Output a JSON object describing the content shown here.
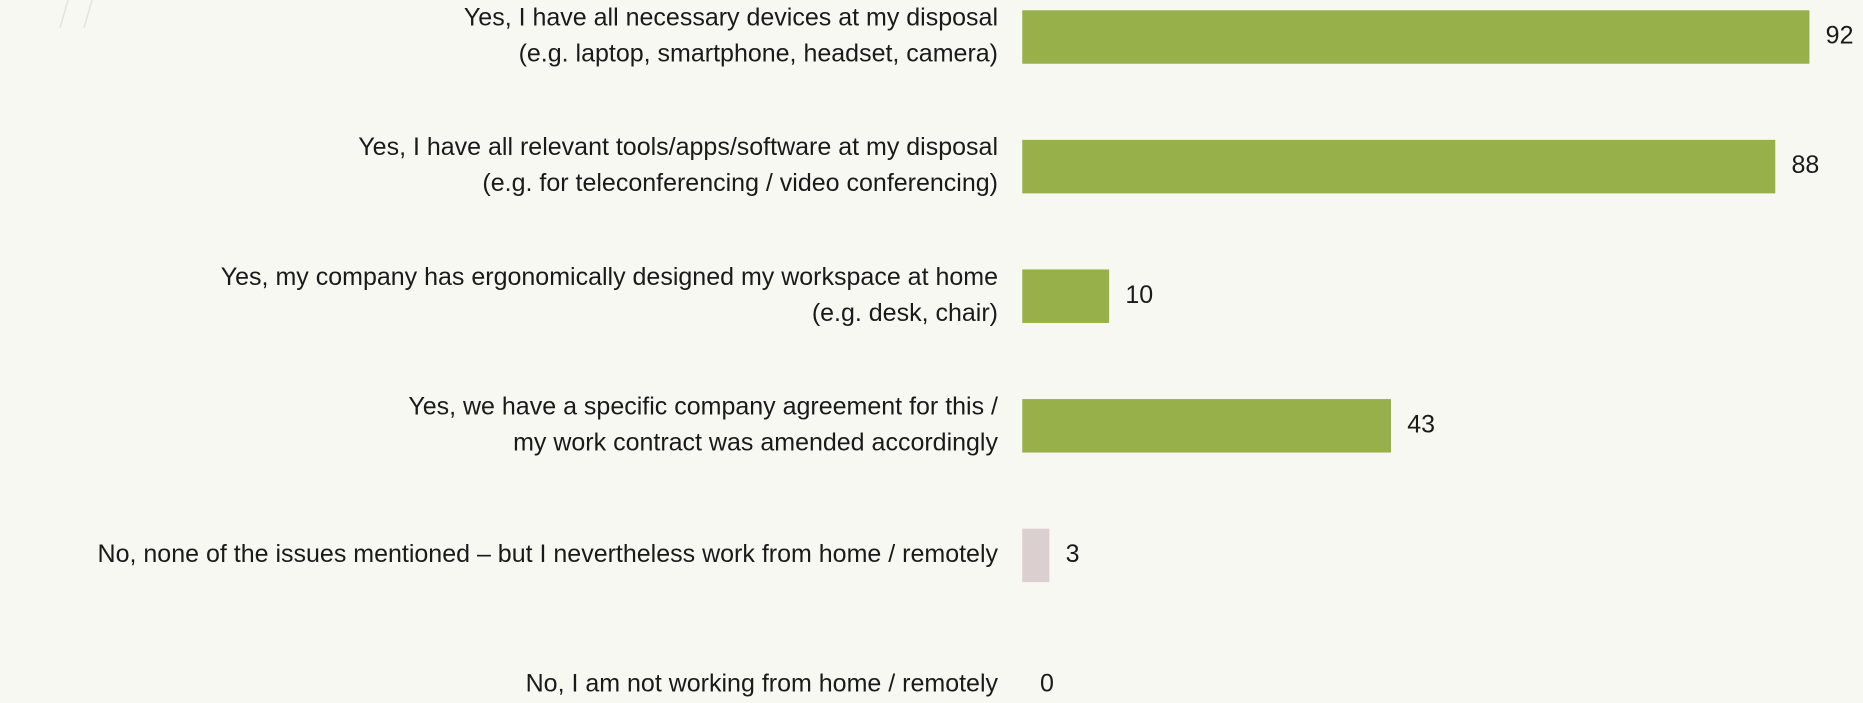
{
  "chart_data": {
    "type": "bar",
    "orientation": "horizontal",
    "categories": [
      [
        "Yes, I have all necessary devices at my disposal",
        "(e.g. laptop, smartphone, headset, camera)"
      ],
      [
        "Yes, I have all relevant tools/apps/software at my disposal",
        "(e.g. for teleconferencing / video conferencing)"
      ],
      [
        "Yes, my company has ergonomically designed my workspace at home",
        "(e.g. desk, chair)"
      ],
      [
        "Yes, we have a specific company agreement for this /",
        "my work contract was amended accordingly"
      ],
      [
        "No, none of the issues mentioned – but I nevertheless work from home / remotely"
      ],
      [
        "No, I am not working from home / remotely"
      ]
    ],
    "values": [
      92,
      88,
      10,
      43,
      3,
      0
    ],
    "colors": [
      "#97b04a",
      "#97b04a",
      "#97b04a",
      "#97b04a",
      "#dccfd0",
      "#dccfd0"
    ]
  }
}
